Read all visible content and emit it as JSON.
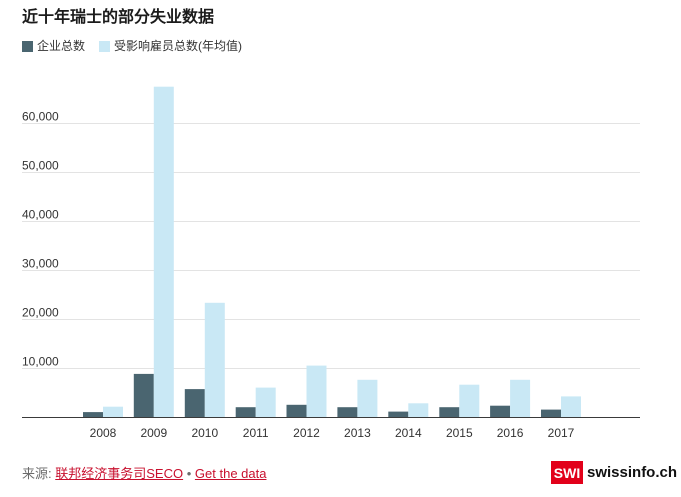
{
  "chart_data": {
    "type": "bar",
    "title": "近十年瑞士的部分失业数据",
    "categories": [
      "2008",
      "2009",
      "2010",
      "2011",
      "2012",
      "2013",
      "2014",
      "2015",
      "2016",
      "2017"
    ],
    "series": [
      {
        "name": "企业总数",
        "color": "#4a6570",
        "values": [
          1000,
          8800,
          5700,
          2000,
          2500,
          2000,
          1100,
          2000,
          2300,
          1500
        ]
      },
      {
        "name": "受影响雇员总数(年均值)",
        "color": "#c9e8f5",
        "values": [
          2100,
          67400,
          23300,
          6000,
          10500,
          7600,
          2800,
          6600,
          7600,
          4200
        ]
      }
    ],
    "y_ticks": [
      {
        "value": 10000,
        "label": "10,000"
      },
      {
        "value": 20000,
        "label": "20,000"
      },
      {
        "value": 30000,
        "label": "30,000"
      },
      {
        "value": 40000,
        "label": "40,000"
      },
      {
        "value": 50000,
        "label": "50,000"
      },
      {
        "value": 60000,
        "label": "60,000"
      }
    ],
    "ylim": [
      0,
      70000
    ],
    "grid": true,
    "legend_position": "top-left"
  },
  "footer": {
    "source_label": "来源:",
    "source_link": "联邦经济事务司SECO",
    "separator": "•",
    "data_link": "Get the data"
  },
  "logo": {
    "mark": "SWI",
    "name": "swissinfo.ch"
  },
  "colors": {
    "link": "#c8102e",
    "brand": "#e2001a"
  }
}
